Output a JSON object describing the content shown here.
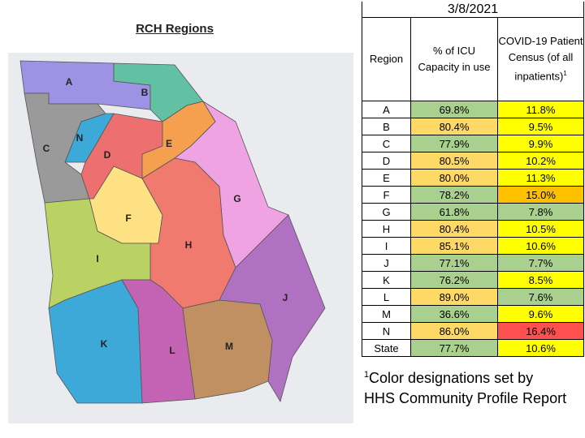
{
  "map": {
    "title": "RCH Regions",
    "regions": [
      {
        "label": "A",
        "color": "#9d92e3"
      },
      {
        "label": "B",
        "color": "#62c1a2"
      },
      {
        "label": "C",
        "color": "#9a9a9a"
      },
      {
        "label": "N",
        "color": "#3ca9d9"
      },
      {
        "label": "D",
        "color": "#ee6f6f"
      },
      {
        "label": "E",
        "color": "#f4a04f"
      },
      {
        "label": "G",
        "color": "#f0a3e2"
      },
      {
        "label": "F",
        "color": "#fde183"
      },
      {
        "label": "H",
        "color": "#ef7a6d"
      },
      {
        "label": "I",
        "color": "#bad263"
      },
      {
        "label": "J",
        "color": "#b071c2"
      },
      {
        "label": "K",
        "color": "#3ca9d9"
      },
      {
        "label": "L",
        "color": "#c463b3"
      },
      {
        "label": "M",
        "color": "#c19062"
      }
    ]
  },
  "table": {
    "date": "3/8/2021",
    "headers": [
      "Region",
      "% of ICU Capacity in use",
      "COVID-19 Patient Census (of all inpatients)"
    ],
    "header_note": "1",
    "rows": [
      [
        "A",
        "69.8%",
        "11.8%"
      ],
      [
        "B",
        "80.4%",
        "9.5%"
      ],
      [
        "C",
        "77.9%",
        "9.9%"
      ],
      [
        "D",
        "80.5%",
        "10.2%"
      ],
      [
        "E",
        "80.0%",
        "11.3%"
      ],
      [
        "F",
        "78.2%",
        "15.0%"
      ],
      [
        "G",
        "61.8%",
        "7.8%"
      ],
      [
        "H",
        "80.4%",
        "10.5%"
      ],
      [
        "I",
        "85.1%",
        "10.6%"
      ],
      [
        "J",
        "77.1%",
        "7.7%"
      ],
      [
        "K",
        "76.2%",
        "8.5%"
      ],
      [
        "L",
        "89.0%",
        "7.6%"
      ],
      [
        "M",
        "36.6%",
        "9.6%"
      ],
      [
        "N",
        "86.0%",
        "16.4%"
      ],
      [
        "State",
        "77.7%",
        "10.6%"
      ]
    ],
    "cell_colors": [
      [
        "#ffffff",
        "#a9d08e",
        "#ffff00"
      ],
      [
        "#ffffff",
        "#ffd966",
        "#ffff00"
      ],
      [
        "#ffffff",
        "#a9d08e",
        "#ffff00"
      ],
      [
        "#ffffff",
        "#ffd966",
        "#ffff00"
      ],
      [
        "#ffffff",
        "#ffd966",
        "#ffff00"
      ],
      [
        "#ffffff",
        "#a9d08e",
        "#ffc000"
      ],
      [
        "#ffffff",
        "#a9d08e",
        "#a9d08e"
      ],
      [
        "#ffffff",
        "#ffd966",
        "#ffff00"
      ],
      [
        "#ffffff",
        "#ffd966",
        "#ffff00"
      ],
      [
        "#ffffff",
        "#a9d08e",
        "#a9d08e"
      ],
      [
        "#ffffff",
        "#a9d08e",
        "#ffff00"
      ],
      [
        "#ffffff",
        "#ffd966",
        "#a9d08e"
      ],
      [
        "#ffffff",
        "#a9d08e",
        "#ffff00"
      ],
      [
        "#ffffff",
        "#ffd966",
        "#ff5050"
      ],
      [
        "#ffffff",
        "#a9d08e",
        "#ffff00"
      ]
    ]
  },
  "footnote": {
    "mark": "1",
    "text": "Color designations set by HHS Community Profile Report"
  }
}
